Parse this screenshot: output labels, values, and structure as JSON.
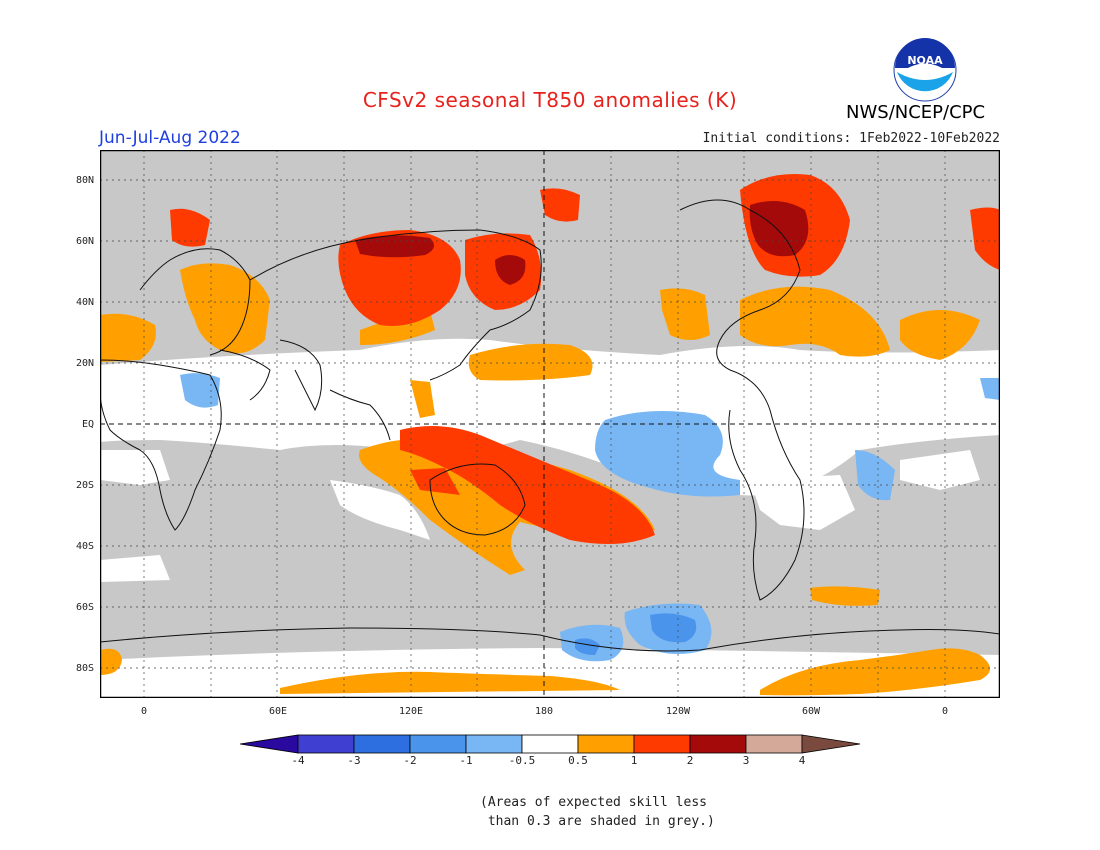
{
  "header": {
    "title": "CFSv2 seasonal T850 anomalies (K)",
    "season": "Jun-Jul-Aug 2022",
    "initial_conditions": "Initial conditions: 1Feb2022-10Feb2022",
    "agency": "NWS/NCEP/CPC",
    "logo_text": "NOAA"
  },
  "axes": {
    "lat_labels": [
      "80N",
      "60N",
      "40N",
      "20N",
      "EQ",
      "20S",
      "40S",
      "60S",
      "80S"
    ],
    "lon_labels": [
      "0",
      "60E",
      "120E",
      "180",
      "120W",
      "60W",
      "0"
    ]
  },
  "legend": {
    "ticks": [
      "-4",
      "-3",
      "-2",
      "-1",
      "-0.5",
      "0.5",
      "1",
      "2",
      "3",
      "4"
    ],
    "colors": [
      "#2a0a9e",
      "#3f3fd2",
      "#2d6ee0",
      "#4a94ec",
      "#78b6f4",
      "#ffffff",
      "#ffa000",
      "#ff3a00",
      "#a50a0a",
      "#d4a99a",
      "#7a4a3e"
    ]
  },
  "note": {
    "line1": "(Areas of expected skill less",
    "line2": " than 0.3 are shaded in grey.)"
  },
  "colors": {
    "skill_grey": "#c8c8c8",
    "anom_05_1": "#ffa000",
    "anom_1_2": "#ff3a00",
    "anom_2_3": "#a50a0a",
    "anom_neg_05_1": "#78b6f4",
    "anom_neg_1_2": "#4a94ec"
  }
}
